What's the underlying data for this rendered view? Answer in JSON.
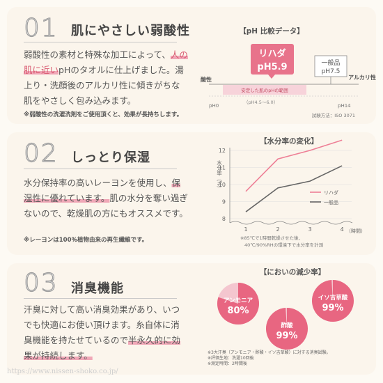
{
  "sections": [
    {
      "num": "01",
      "title": "肌にやさしい弱酸性",
      "body_parts": [
        "弱酸性の素材と特殊な加工によって、",
        "人の肌に近い",
        "pHのタオルに仕上げました。湯上り・洗顔後のアルカリ性に傾きがちな肌をやさしく包み込みます。"
      ],
      "note": "※弱酸性の洗濯洗剤をご使用頂くと、効果が長持ちします。"
    },
    {
      "num": "02",
      "title": "しっとり保湿",
      "body_parts": [
        "水分保持率の高いレーヨンを使用し、",
        "保湿性に優れています。",
        "肌の水分を奪い過ぎないので、乾燥肌の方にもオススメです。"
      ],
      "note": "※レーヨンは100％植物由来の再生繊維です。"
    },
    {
      "num": "03",
      "title": "消臭機能",
      "body_parts": [
        "汗臭に対して高い消臭効果があり、いつでも快適にお使い頂けます。糸自体に消臭機能を持たせているので",
        "半永久的に効果が持続します。"
      ],
      "note": ""
    }
  ],
  "ph_chart": {
    "title": "【pH 比較データ】",
    "rihada_label": "リハダ",
    "rihada_value": "pH5.9",
    "general_label": "一般品",
    "general_value": "pH7.5",
    "acid_label": "酸性",
    "alkali_label": "アルカリ性",
    "band_label": "安定した肌のpHの範囲",
    "band_range": "（pH4.5～6.0）",
    "x_min_label": "pH0",
    "x_max_label": "pH14",
    "method": "試験方法：ISO 3071",
    "colors": {
      "pink": "#e8738b",
      "band": "#f7d3da"
    }
  },
  "chart_data": {
    "type": "line",
    "title": "【水分率の変化】",
    "ylabel": "水分率（%）",
    "xlabel": "（時間）",
    "x": [
      1,
      2,
      3,
      4
    ],
    "ylim": [
      8,
      12
    ],
    "xticks": [
      "1",
      "2",
      "3",
      "4"
    ],
    "yticks": [
      "8",
      "9",
      "10",
      "11",
      "12"
    ],
    "series": [
      {
        "name": "リハダ",
        "values": [
          9.6,
          11.5,
          12.0,
          12.6
        ],
        "color": "#ee7f96"
      },
      {
        "name": "一般品",
        "values": [
          8.4,
          9.8,
          10.2,
          11.1
        ],
        "color": "#666666"
      }
    ],
    "notes": [
      "※85℃で1時間乾燥させた後、",
      "40℃/90%RHの環境下で水分率を計測"
    ],
    "legend": "right"
  },
  "odor_chart": {
    "title": "【においの減少率】",
    "items": [
      {
        "name": "アンモニア",
        "percent": 80,
        "label": "80%"
      },
      {
        "name": "イソ吉草酸",
        "percent": 99,
        "label": "99%"
      },
      {
        "name": "酢酸",
        "percent": 99,
        "label": "99%"
      }
    ],
    "notes": [
      "※3大汗臭（アンモニア・酢酸・イソ吉草酸）に対する消臭試験。",
      "※評価生地：洗濯10回後",
      "※測定時間：2時間後"
    ],
    "colors": {
      "pink": "#e86681",
      "light": "#f4c6cf"
    }
  },
  "footer": {
    "url": "https://www.nissen-shoko.co.jp/"
  }
}
